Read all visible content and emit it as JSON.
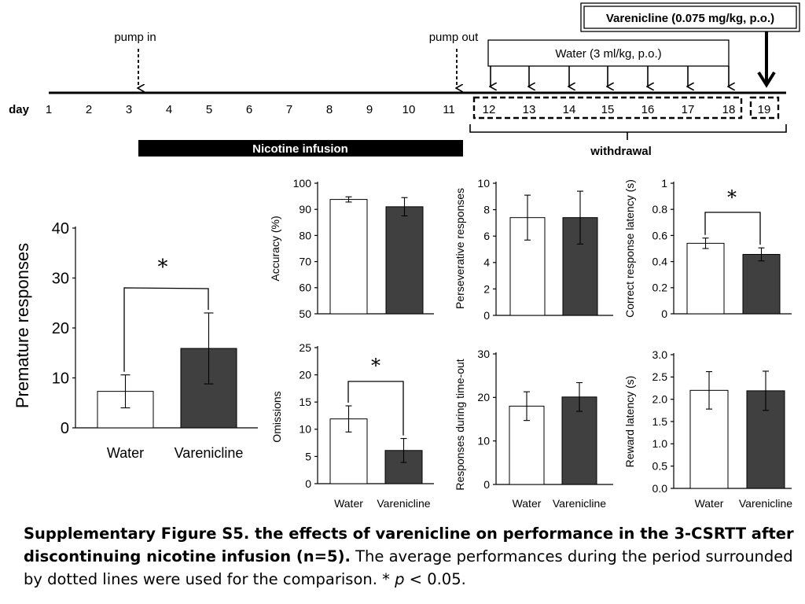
{
  "timeline": {
    "day_label": "day",
    "days": [
      "1",
      "2",
      "3",
      "4",
      "5",
      "6",
      "7",
      "8",
      "9",
      "10",
      "11",
      "12",
      "13",
      "14",
      "15",
      "16",
      "17",
      "18",
      "19"
    ],
    "pump_in": "pump in",
    "pump_out": "pump out",
    "water_box": "Water (3 ml/kg, p.o.)",
    "varenicline_box": "Varenicline (0.075 mg/kg, p.o.)",
    "nicotine_bar": "Nicotine infusion",
    "withdrawal": "withdrawal"
  },
  "chart_data": [
    {
      "id": "premature",
      "type": "bar",
      "ylabel": "Premature responses",
      "categories": [
        "Water",
        "Varenicline"
      ],
      "values": [
        7.3,
        15.9
      ],
      "errors": [
        3.3,
        7.1
      ],
      "ylim": [
        0,
        40
      ],
      "ticks": [
        "0",
        "10",
        "20",
        "30",
        "40"
      ],
      "significance": "*"
    },
    {
      "id": "accuracy",
      "type": "bar",
      "ylabel": "Accuracy (%)",
      "categories": [
        "Water",
        "Varenicline"
      ],
      "values": [
        93.8,
        91.0
      ],
      "errors": [
        1.0,
        3.5
      ],
      "ylim": [
        50,
        100
      ],
      "ticks": [
        "50",
        "60",
        "70",
        "80",
        "90",
        "100"
      ],
      "significance": ""
    },
    {
      "id": "perseverative",
      "type": "bar",
      "ylabel": "Perseverative responses",
      "categories": [
        "Water",
        "Varenicline"
      ],
      "values": [
        7.4,
        7.4
      ],
      "errors": [
        1.7,
        2.0
      ],
      "ylim": [
        0,
        10
      ],
      "ticks": [
        "0",
        "2",
        "4",
        "6",
        "8",
        "10"
      ],
      "significance": ""
    },
    {
      "id": "correct_latency",
      "type": "bar",
      "ylabel": "Correct response latency  (s)",
      "categories": [
        "Water",
        "Varenicline"
      ],
      "values": [
        0.54,
        0.455
      ],
      "errors": [
        0.04,
        0.05
      ],
      "ylim": [
        0,
        1
      ],
      "ticks": [
        "0",
        "0.2",
        "0.4",
        "0.6",
        "0.8",
        "1"
      ],
      "significance": "*"
    },
    {
      "id": "omissions",
      "type": "bar",
      "ylabel": "Omissions",
      "categories": [
        "Water",
        "Varenicline"
      ],
      "values": [
        11.9,
        6.1
      ],
      "errors": [
        2.4,
        2.2
      ],
      "ylim": [
        0,
        25
      ],
      "ticks": [
        "0",
        "5",
        "10",
        "15",
        "20",
        "25"
      ],
      "significance": "*"
    },
    {
      "id": "timeout",
      "type": "bar",
      "ylabel": "Responses during time-out",
      "categories": [
        "Water",
        "Varenicline"
      ],
      "values": [
        18.0,
        20.1
      ],
      "errors": [
        3.3,
        3.3
      ],
      "ylim": [
        0,
        30
      ],
      "ticks": [
        "0",
        "10",
        "20",
        "30"
      ],
      "significance": ""
    },
    {
      "id": "reward_latency",
      "type": "bar",
      "ylabel": "Reward latency  (s)",
      "categories": [
        "Water",
        "Varenicline"
      ],
      "values": [
        2.2,
        2.19
      ],
      "errors": [
        0.42,
        0.44
      ],
      "ylim": [
        0,
        3
      ],
      "ticks": [
        "0.0",
        "0.5",
        "1.0",
        "1.5",
        "2.0",
        "2.5",
        "3.0"
      ],
      "significance": ""
    }
  ],
  "caption": {
    "bold": "Supplementary Figure S5. the effects of varenicline on performance in the 3-CSRTT after discontinuing nicotine infusion (n=5).",
    "text_1": " The average performances during the period surrounded by dotted lines were used for the comparison. * ",
    "p_symbol": "p",
    "text_2": " < 0.05."
  }
}
